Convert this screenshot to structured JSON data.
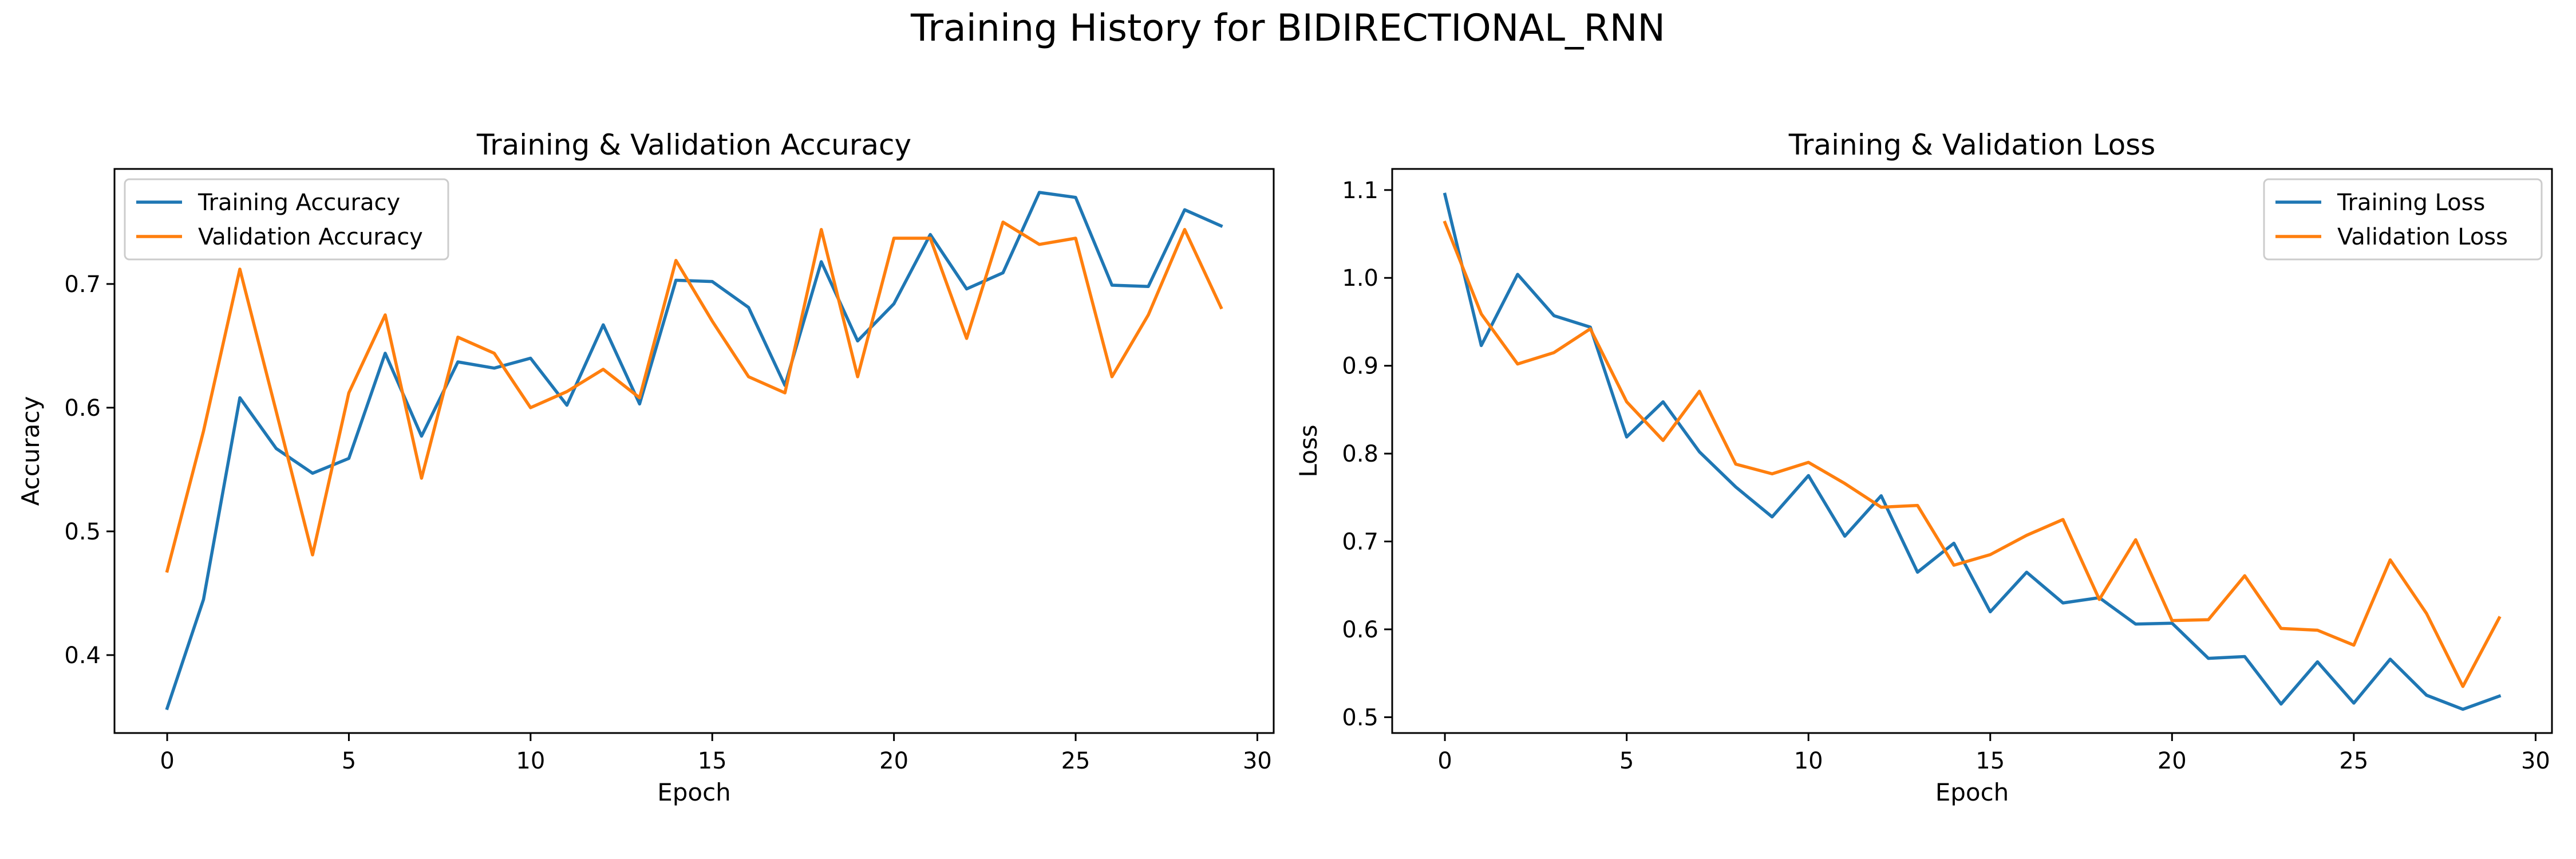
{
  "figure_title": "Training History for BIDIRECTIONAL_RNN",
  "colors": {
    "series_1": "#1f77b4",
    "series_2": "#ff7f0e",
    "axes": "#000000"
  },
  "chart_data": [
    {
      "type": "line",
      "title": "Training & Validation Accuracy",
      "xlabel": "Epoch",
      "ylabel": "Accuracy",
      "xlim": [
        -1.45,
        30.45
      ],
      "ylim": [
        0.337,
        0.793
      ],
      "xticks": [
        0,
        5,
        10,
        15,
        20,
        25,
        30
      ],
      "yticks": [
        0.4,
        0.5,
        0.6,
        0.7
      ],
      "ytick_decimals": 1,
      "legend_position": "upper-left",
      "x": [
        0,
        1,
        2,
        3,
        4,
        5,
        6,
        7,
        8,
        9,
        10,
        11,
        12,
        13,
        14,
        15,
        16,
        17,
        18,
        19,
        20,
        21,
        22,
        23,
        24,
        25,
        26,
        27,
        28,
        29
      ],
      "series": [
        {
          "name": "Training Accuracy",
          "color": "#1f77b4",
          "values": [
            0.357,
            0.445,
            0.608,
            0.567,
            0.547,
            0.559,
            0.644,
            0.577,
            0.637,
            0.632,
            0.64,
            0.602,
            0.667,
            0.603,
            0.703,
            0.702,
            0.681,
            0.618,
            0.718,
            0.654,
            0.684,
            0.74,
            0.696,
            0.709,
            0.774,
            0.77,
            0.699,
            0.698,
            0.76,
            0.747
          ]
        },
        {
          "name": "Validation Accuracy",
          "color": "#ff7f0e",
          "values": [
            0.468,
            0.581,
            0.712,
            0.597,
            0.481,
            0.612,
            0.675,
            0.543,
            0.657,
            0.644,
            0.6,
            0.613,
            0.631,
            0.608,
            0.719,
            0.67,
            0.625,
            0.612,
            0.744,
            0.625,
            0.737,
            0.737,
            0.656,
            0.75,
            0.732,
            0.737,
            0.625,
            0.675,
            0.744,
            0.681
          ]
        }
      ]
    },
    {
      "type": "line",
      "title": "Training & Validation Loss",
      "xlabel": "Epoch",
      "ylabel": "Loss",
      "xlim": [
        -1.45,
        30.45
      ],
      "ylim": [
        0.482,
        1.124
      ],
      "xticks": [
        0,
        5,
        10,
        15,
        20,
        25,
        30
      ],
      "yticks": [
        0.5,
        0.6,
        0.7,
        0.8,
        0.9,
        1.0,
        1.1
      ],
      "ytick_decimals": 1,
      "legend_position": "upper-right",
      "x": [
        0,
        1,
        2,
        3,
        4,
        5,
        6,
        7,
        8,
        9,
        10,
        11,
        12,
        13,
        14,
        15,
        16,
        17,
        18,
        19,
        20,
        21,
        22,
        23,
        24,
        25,
        26,
        27,
        28,
        29
      ],
      "series": [
        {
          "name": "Training Loss",
          "color": "#1f77b4",
          "values": [
            1.095,
            0.923,
            1.004,
            0.957,
            0.944,
            0.819,
            0.859,
            0.802,
            0.762,
            0.728,
            0.775,
            0.706,
            0.752,
            0.665,
            0.698,
            0.62,
            0.665,
            0.63,
            0.636,
            0.606,
            0.607,
            0.567,
            0.569,
            0.515,
            0.563,
            0.516,
            0.566,
            0.525,
            0.509,
            0.524
          ]
        },
        {
          "name": "Validation Loss",
          "color": "#ff7f0e",
          "values": [
            1.063,
            0.959,
            0.902,
            0.915,
            0.942,
            0.859,
            0.815,
            0.871,
            0.788,
            0.777,
            0.79,
            0.766,
            0.739,
            0.741,
            0.673,
            0.685,
            0.707,
            0.725,
            0.634,
            0.702,
            0.61,
            0.611,
            0.661,
            0.601,
            0.599,
            0.582,
            0.679,
            0.618,
            0.535,
            0.613
          ]
        }
      ]
    }
  ]
}
